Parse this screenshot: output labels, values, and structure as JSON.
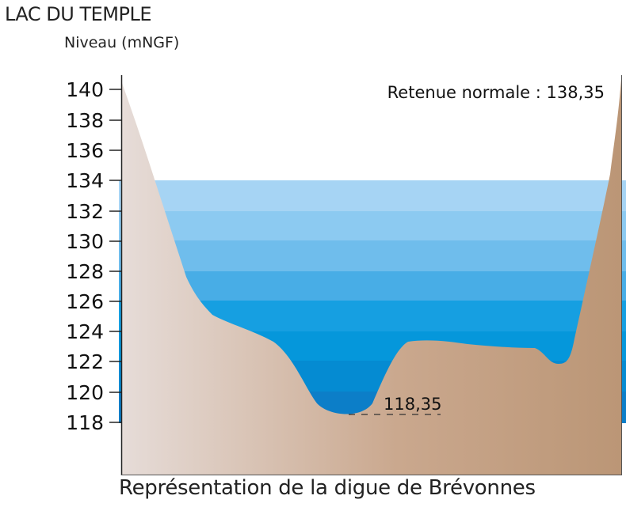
{
  "title": "LAC DU TEMPLE",
  "axis_label": "Niveau (mNGF)",
  "caption": "Représentation de la digue de Brévonnes",
  "retenue_label": "Retenue normale : 138,35",
  "bottom_label": "118,35",
  "y_ticks": [
    "140",
    "138",
    "136",
    "134",
    "132",
    "130",
    "128",
    "126",
    "124",
    "122",
    "120",
    "118"
  ],
  "colors": {
    "water_top": "#a6d4f4",
    "water_bottom": "#0c7ec8",
    "ground_left": "#e6dcd8",
    "ground_right": "#bb9676"
  }
}
